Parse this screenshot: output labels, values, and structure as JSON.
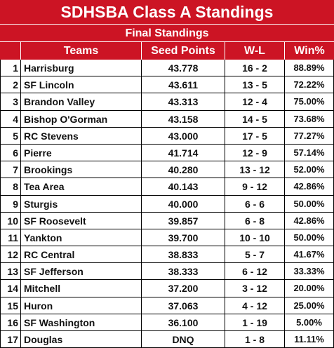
{
  "title": "SDHSBA Class A Standings",
  "subtitle": "Final Standings",
  "header": {
    "rank": "",
    "teams": "Teams",
    "seed_points": "Seed Points",
    "wl": "W-L",
    "win_pct": "Win%"
  },
  "colors": {
    "banner": "#cc1424",
    "banner_text": "#ffffff"
  },
  "rows": [
    {
      "rank": "1",
      "team": "Harrisburg",
      "seed": "43.778",
      "wl": "16 - 2",
      "win": "88.89%"
    },
    {
      "rank": "2",
      "team": "SF Lincoln",
      "seed": "43.611",
      "wl": "13 - 5",
      "win": "72.22%"
    },
    {
      "rank": "3",
      "team": "Brandon Valley",
      "seed": "43.313",
      "wl": "12 - 4",
      "win": "75.00%"
    },
    {
      "rank": "4",
      "team": "Bishop O'Gorman",
      "seed": "43.158",
      "wl": "14 - 5",
      "win": "73.68%"
    },
    {
      "rank": "5",
      "team": "RC Stevens",
      "seed": "43.000",
      "wl": "17 - 5",
      "win": "77.27%"
    },
    {
      "rank": "6",
      "team": "Pierre",
      "seed": "41.714",
      "wl": "12 - 9",
      "win": "57.14%"
    },
    {
      "rank": "7",
      "team": "Brookings",
      "seed": "40.280",
      "wl": "13 - 12",
      "win": "52.00%"
    },
    {
      "rank": "8",
      "team": "Tea Area",
      "seed": "40.143",
      "wl": "9 - 12",
      "win": "42.86%"
    },
    {
      "rank": "9",
      "team": "Sturgis",
      "seed": "40.000",
      "wl": "6 - 6",
      "win": "50.00%"
    },
    {
      "rank": "10",
      "team": "SF Roosevelt",
      "seed": "39.857",
      "wl": "6 - 8",
      "win": "42.86%"
    },
    {
      "rank": "11",
      "team": "Yankton",
      "seed": "39.700",
      "wl": "10 - 10",
      "win": "50.00%"
    },
    {
      "rank": "12",
      "team": "RC Central",
      "seed": "38.833",
      "wl": "5 - 7",
      "win": "41.67%"
    },
    {
      "rank": "13",
      "team": "SF Jefferson",
      "seed": "38.333",
      "wl": "6 - 12",
      "win": "33.33%"
    },
    {
      "rank": "14",
      "team": "Mitchell",
      "seed": "37.200",
      "wl": "3 - 12",
      "win": "20.00%"
    },
    {
      "rank": "15",
      "team": "Huron",
      "seed": "37.063",
      "wl": "4 - 12",
      "win": "25.00%"
    },
    {
      "rank": "16",
      "team": "SF Washington",
      "seed": "36.100",
      "wl": "1 - 19",
      "win": "5.00%"
    },
    {
      "rank": "17",
      "team": "Douglas",
      "seed": "DNQ",
      "wl": "1 - 8",
      "win": "11.11%"
    }
  ]
}
